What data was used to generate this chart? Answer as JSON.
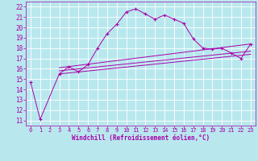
{
  "xlabel": "Windchill (Refroidissement éolien,°C)",
  "bg_color": "#b8e8ee",
  "line_color": "#aa00aa",
  "xlim": [
    -0.5,
    23.5
  ],
  "ylim": [
    10.5,
    22.5
  ],
  "yticks": [
    11,
    12,
    13,
    14,
    15,
    16,
    17,
    18,
    19,
    20,
    21,
    22
  ],
  "xticks": [
    0,
    1,
    2,
    3,
    4,
    5,
    6,
    7,
    8,
    9,
    10,
    11,
    12,
    13,
    14,
    15,
    16,
    17,
    18,
    19,
    20,
    21,
    22,
    23
  ],
  "curve1_x": [
    0,
    1,
    3,
    4,
    5,
    6,
    7,
    8,
    9,
    10,
    11,
    12,
    13,
    14,
    15,
    16,
    17,
    18,
    19,
    20,
    21,
    22,
    23
  ],
  "curve1_y": [
    14.7,
    11.1,
    15.5,
    16.2,
    15.7,
    16.4,
    18.0,
    19.4,
    20.3,
    21.5,
    21.8,
    21.3,
    20.8,
    21.2,
    20.8,
    20.4,
    18.9,
    18.0,
    17.9,
    18.0,
    17.5,
    17.0,
    18.4
  ],
  "line2_x": [
    3,
    23
  ],
  "line2_y": [
    15.5,
    17.4
  ],
  "line3_x": [
    3,
    23
  ],
  "line3_y": [
    15.8,
    17.7
  ],
  "line4_x": [
    3,
    23
  ],
  "line4_y": [
    16.1,
    18.4
  ],
  "xlabel_fontsize": 5.5,
  "tick_fontsize": 5.0,
  "ytick_fontsize": 5.5
}
